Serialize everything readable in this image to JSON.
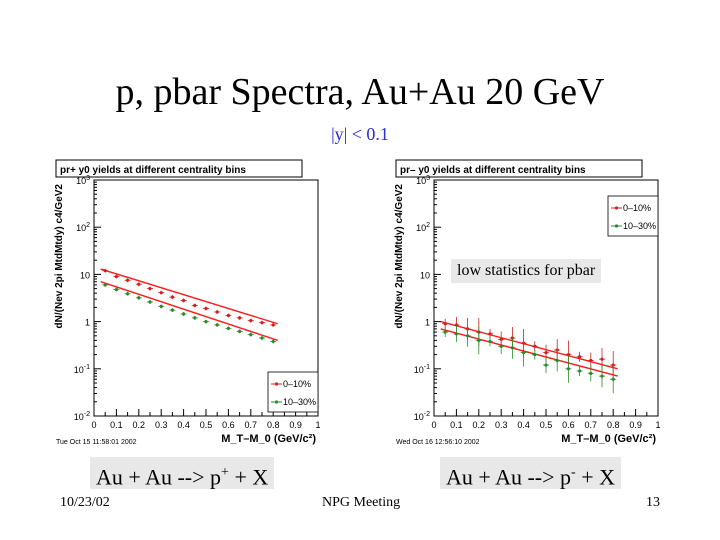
{
  "slide": {
    "title": "p, pbar Spectra, Au+Au 20 GeV",
    "subtitle": "|y| < 0.1",
    "caption_left_base": "Au + Au --> p",
    "caption_left_sup": "+",
    "caption_left_tail": " + X",
    "caption_right_base": "Au + Au --> p",
    "caption_right_sup": "-",
    "caption_right_tail": " + X",
    "note": "low statistics for pbar",
    "footer_date": "10/23/02",
    "footer_center": "NPG Meeting",
    "footer_page": "13"
  },
  "chart_data": [
    {
      "type": "scatter",
      "title": "pr+ y0 yields at different centrality bins",
      "xlabel": "M_T–M_0 (GeV/c²)",
      "ylabel": "dN/(Nev 2pi MtdMtdy) c4/GeV2",
      "xlim": [
        0,
        1
      ],
      "ylim": [
        0.01,
        1000
      ],
      "yscale": "log",
      "x_ticks": [
        "0",
        "0.1",
        "0.2",
        "0.3",
        "0.4",
        "0.5",
        "0.6",
        "0.7",
        "0.8",
        "0.9",
        "1"
      ],
      "y_ticks": [
        "10^{-2}",
        "10^{-1}",
        "1",
        "10",
        "10^{2}",
        "10^{3}"
      ],
      "timestamp": "Tue Oct 15 11:58:01 2002",
      "legend_position": "bottom-right",
      "series": [
        {
          "name": "0–10%",
          "color": "#d02020",
          "x": [
            0.05,
            0.1,
            0.15,
            0.2,
            0.25,
            0.3,
            0.35,
            0.4,
            0.45,
            0.5,
            0.55,
            0.6,
            0.65,
            0.7,
            0.75,
            0.8
          ],
          "y": [
            12,
            9,
            7.5,
            6.2,
            5,
            4.1,
            3.3,
            2.8,
            2.2,
            1.9,
            1.6,
            1.35,
            1.2,
            1.05,
            0.95,
            0.85
          ],
          "fit": [
            [
              0.03,
              13
            ],
            [
              0.82,
              0.9
            ]
          ]
        },
        {
          "name": "10–30%",
          "color": "#2a8a2a",
          "x": [
            0.05,
            0.1,
            0.15,
            0.2,
            0.25,
            0.3,
            0.35,
            0.4,
            0.45,
            0.5,
            0.55,
            0.6,
            0.65,
            0.7,
            0.75,
            0.8
          ],
          "y": [
            6,
            4.8,
            3.9,
            3.2,
            2.6,
            2.1,
            1.75,
            1.45,
            1.2,
            1.0,
            0.85,
            0.72,
            0.62,
            0.53,
            0.45,
            0.38
          ],
          "fit": [
            [
              0.03,
              7
            ],
            [
              0.82,
              0.4
            ]
          ]
        }
      ]
    },
    {
      "type": "scatter",
      "title": "pr– y0 yields at different centrality bins",
      "xlabel": "M_T–M_0 (GeV/c²)",
      "ylabel": "dN/(Nev 2pi MtdMtdy) c4/GeV2",
      "xlim": [
        0,
        1
      ],
      "ylim": [
        0.01,
        1000
      ],
      "yscale": "log",
      "x_ticks": [
        "0",
        "0.1",
        "0.2",
        "0.3",
        "0.4",
        "0.5",
        "0.6",
        "0.7",
        "0.8",
        "0.9",
        "1"
      ],
      "y_ticks": [
        "10^{-2}",
        "10^{-1}",
        "1",
        "10",
        "10^{2}",
        "10^{3}"
      ],
      "timestamp": "Wed Oct 16 12:56:10 2002",
      "legend_position": "top-right",
      "series": [
        {
          "name": "0–10%",
          "color": "#d02020",
          "x": [
            0.05,
            0.1,
            0.15,
            0.2,
            0.25,
            0.3,
            0.35,
            0.4,
            0.45,
            0.5,
            0.55,
            0.6,
            0.65,
            0.7,
            0.75,
            0.8
          ],
          "y": [
            0.9,
            0.85,
            0.7,
            0.6,
            0.55,
            0.42,
            0.45,
            0.35,
            0.3,
            0.22,
            0.25,
            0.2,
            0.18,
            0.15,
            0.16,
            0.12
          ],
          "fit": [
            [
              0.03,
              1.0
            ],
            [
              0.82,
              0.1
            ]
          ]
        },
        {
          "name": "10–30%",
          "color": "#2a8a2a",
          "x": [
            0.05,
            0.1,
            0.15,
            0.2,
            0.25,
            0.3,
            0.35,
            0.4,
            0.45,
            0.5,
            0.55,
            0.6,
            0.65,
            0.7,
            0.75,
            0.8
          ],
          "y": [
            0.6,
            0.55,
            0.5,
            0.4,
            0.38,
            0.3,
            0.28,
            0.22,
            0.2,
            0.12,
            0.15,
            0.1,
            0.09,
            0.08,
            0.07,
            0.06
          ],
          "fit": [
            [
              0.03,
              0.7
            ],
            [
              0.82,
              0.07
            ]
          ]
        }
      ]
    }
  ]
}
